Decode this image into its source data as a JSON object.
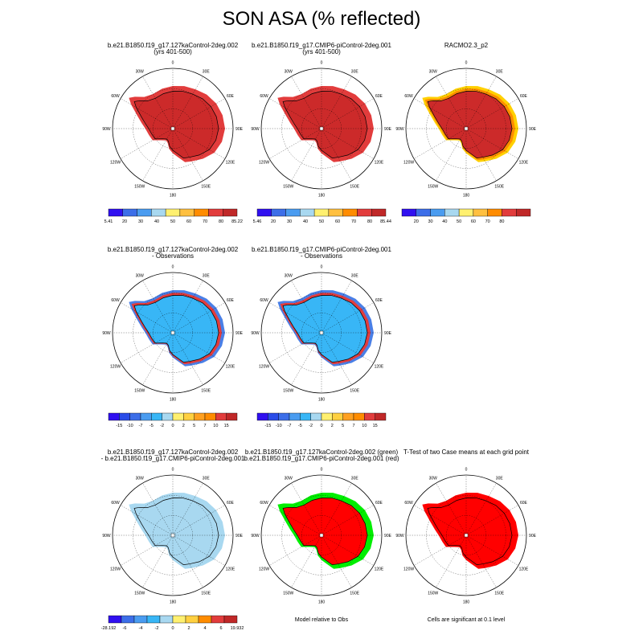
{
  "page": {
    "title": "SON ASA (% reflected)"
  },
  "colors": {
    "ocean": "#ffffff",
    "land_outline": "#000000",
    "significant_red": "#ff0000",
    "diff_green": "#00ee00"
  },
  "longitude_labels": [
    "0",
    "30E",
    "60E",
    "90E",
    "120E",
    "150E",
    "180",
    "150W",
    "120W",
    "90W",
    "60W",
    "30W"
  ],
  "panels": [
    {
      "id": "case1",
      "title_line1": "b.e21.B1850.f19_g17.127kaControl-2deg.002",
      "title_line2": "(yrs 401-500)",
      "fill": "#cc2a2a",
      "coast": "#e23c3c",
      "coast2": "#e23c3c",
      "colorbar": 0
    },
    {
      "id": "case2",
      "title_line1": "b.e21.B1850.f19_g17.CMIP6-piControl-2deg.001",
      "title_line2": "(yrs 401-500)",
      "fill": "#cc2a2a",
      "coast": "#e23c3c",
      "coast2": "#e23c3c",
      "colorbar": 1
    },
    {
      "id": "obs",
      "title_line1": "RACMO2.3_p2",
      "title_line2": "",
      "fill": "#cc2a2a",
      "coast": "#ff8c00",
      "coast2": "#ffd000",
      "colorbar": 2
    },
    {
      "id": "case1-obs",
      "title_line1": "b.e21.B1850.f19_g17.127kaControl-2deg.002",
      "title_line2": "- Observations",
      "fill": "#38b6f6",
      "coast": "#e23c3c",
      "coast2": "#4a7fe6",
      "colorbar": 3
    },
    {
      "id": "case2-obs",
      "title_line1": "b.e21.B1850.f19_g17.CMIP6-piControl-2deg.001",
      "title_line2": "- Observations",
      "fill": "#38b6f6",
      "coast": "#e23c3c",
      "coast2": "#4a7fe6",
      "colorbar": 4
    },
    {
      "id": "case-diff",
      "title_line1": "b.e21.B1850.f19_g17.127kaControl-2deg.002",
      "title_line2": "- b.e21.B1850.f19_g17.CMIP6-piControl-2deg.001",
      "fill": "#a8d8f0",
      "coast": "#a8d8f0",
      "coast2": "#a8d8f0",
      "colorbar": 5
    },
    {
      "id": "model-vs-obs",
      "title_line1": "b.e21.B1850.f19_g17.127kaControl-2deg.002 (green)",
      "title_line2": "b.e21.B1850.f19_g17.CMIP6-piControl-2deg.001 (red)",
      "fill": "#ff0000",
      "coast": "#00ee00",
      "coast2": "#00ee00",
      "colorbar": null,
      "note": "Model relative to Obs"
    },
    {
      "id": "ttest",
      "title_line1": "T-Test of two Case means at each grid point",
      "title_line2": "",
      "fill": "#ff0000",
      "coast": "#ff0000",
      "coast2": "#ff0000",
      "colorbar": null,
      "note": "Cells are significant at 0.1 level"
    }
  ],
  "colorbars": [
    {
      "colors": [
        "#3010f0",
        "#3c6ee8",
        "#4a9cf0",
        "#a8d8f0",
        "#fff070",
        "#ffc040",
        "#ff8c00",
        "#e23c3c",
        "#c02828"
      ],
      "labels": [
        "5.41",
        "20",
        "30",
        "40",
        "50",
        "60",
        "70",
        "80",
        "85.22"
      ],
      "edge_labels": true
    },
    {
      "colors": [
        "#3010f0",
        "#3c6ee8",
        "#4a9cf0",
        "#a8d8f0",
        "#fff070",
        "#ffc040",
        "#ff8c00",
        "#e23c3c",
        "#c02828"
      ],
      "labels": [
        "5.46",
        "20",
        "30",
        "40",
        "50",
        "60",
        "70",
        "80",
        "85.44"
      ],
      "edge_labels": true
    },
    {
      "colors": [
        "#3010f0",
        "#3c6ee8",
        "#4a9cf0",
        "#a8d8f0",
        "#fff070",
        "#ffc040",
        "#ff8c00",
        "#e23c3c",
        "#c02828"
      ],
      "labels": [
        "20",
        "30",
        "40",
        "50",
        "60",
        "70",
        "80"
      ],
      "edge_labels": false
    },
    {
      "colors": [
        "#3010f0",
        "#2a4ce8",
        "#3c6ee8",
        "#4a9cf0",
        "#38b6f6",
        "#a8d8f0",
        "#fff070",
        "#ffd040",
        "#ffa020",
        "#ff8c00",
        "#e23c3c",
        "#c02828"
      ],
      "labels": [
        "-15",
        "-10",
        "-7",
        "-5",
        "-2",
        "0",
        "2",
        "5",
        "7",
        "10",
        "15"
      ],
      "edge_labels": false
    },
    {
      "colors": [
        "#3010f0",
        "#2a4ce8",
        "#3c6ee8",
        "#4a9cf0",
        "#38b6f6",
        "#a8d8f0",
        "#fff070",
        "#ffd040",
        "#ffa020",
        "#ff8c00",
        "#e23c3c",
        "#c02828"
      ],
      "labels": [
        "-15",
        "-10",
        "-7",
        "-5",
        "-2",
        "0",
        "2",
        "5",
        "7",
        "10",
        "15"
      ],
      "edge_labels": false
    },
    {
      "colors": [
        "#3010f0",
        "#3c6ee8",
        "#4a9cf0",
        "#38b6f6",
        "#a8d8f0",
        "#fff070",
        "#ffd040",
        "#ff8c00",
        "#e23c3c",
        "#c02828"
      ],
      "labels": [
        "-28.192",
        "-6",
        "-4",
        "-2",
        "0",
        "2",
        "4",
        "6",
        "19.932"
      ],
      "edge_labels": true
    }
  ],
  "chart_data": {
    "type": "heatmap",
    "title": "SON ASA (% reflected)",
    "projection": "south-polar-stereographic",
    "longitude_ticks": [
      "0",
      "30E",
      "60E",
      "90E",
      "120E",
      "150E",
      "180",
      "150W",
      "120W",
      "90W",
      "60W",
      "30W"
    ],
    "colorbar_ranges": [
      {
        "panel": "case1",
        "min": 5.41,
        "max": 85.22,
        "levels": [
          20,
          30,
          40,
          50,
          60,
          70,
          80
        ]
      },
      {
        "panel": "case2",
        "min": 5.46,
        "max": 85.44,
        "levels": [
          20,
          30,
          40,
          50,
          60,
          70,
          80
        ]
      },
      {
        "panel": "obs",
        "levels": [
          20,
          30,
          40,
          50,
          60,
          70,
          80
        ]
      },
      {
        "panel": "case1-obs",
        "levels": [
          -15,
          -10,
          -7,
          -5,
          -2,
          0,
          2,
          5,
          7,
          10,
          15
        ]
      },
      {
        "panel": "case2-obs",
        "levels": [
          -15,
          -10,
          -7,
          -5,
          -2,
          0,
          2,
          5,
          7,
          10,
          15
        ]
      },
      {
        "panel": "case-diff",
        "min": -28.192,
        "max": 19.932,
        "levels": [
          -6,
          -4,
          -2,
          0,
          2,
          4,
          6
        ]
      }
    ]
  }
}
